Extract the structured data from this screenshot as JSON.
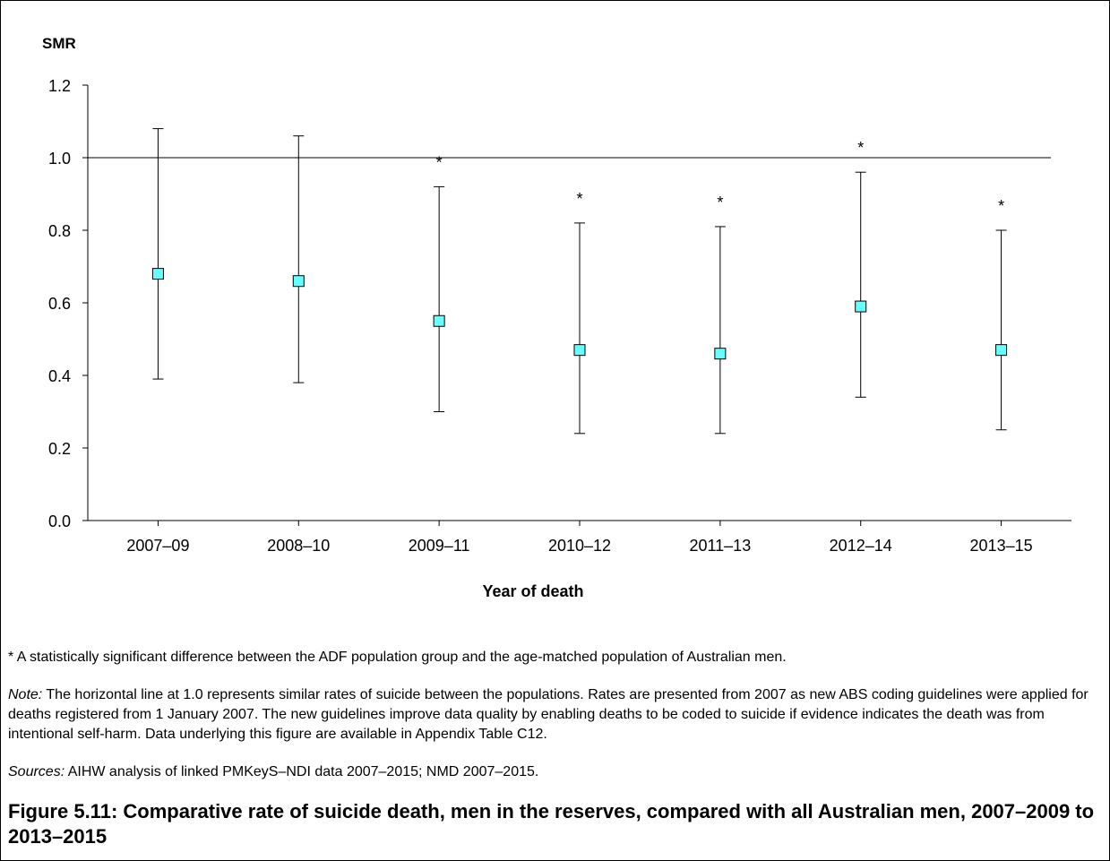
{
  "chart_data": {
    "type": "scatter",
    "ylabel": "SMR",
    "xlabel": "Year of death",
    "ylim": [
      0,
      1.2
    ],
    "yticks": [
      "0.0",
      "0.2",
      "0.4",
      "0.6",
      "0.8",
      "1.0",
      "1.2"
    ],
    "categories": [
      "2007–09",
      "2008–10",
      "2009–11",
      "2010–12",
      "2011–13",
      "2012–14",
      "2013–15"
    ],
    "values": [
      0.68,
      0.66,
      0.55,
      0.47,
      0.46,
      0.59,
      0.47
    ],
    "ci_lower": [
      0.39,
      0.38,
      0.3,
      0.24,
      0.24,
      0.34,
      0.25
    ],
    "ci_upper": [
      1.08,
      1.06,
      0.92,
      0.82,
      0.81,
      0.96,
      0.8
    ],
    "significant": [
      false,
      false,
      true,
      true,
      true,
      true,
      true
    ],
    "significance_marker": "*",
    "reference_line": 1.0,
    "grid": false,
    "marker_color": "#66ffff"
  },
  "notes": {
    "significance": "* A statistically significant difference between the ADF population group and the age-matched population of Australian men.",
    "note_label": "Note:",
    "note_text": " The horizontal line at 1.0 represents similar rates of suicide between the populations. Rates are presented from 2007 as new ABS coding guidelines were applied for deaths registered from 1 January 2007. The new guidelines improve data quality by enabling deaths to be coded to suicide if evidence indicates the death was from intentional self-harm. Data underlying this figure are available in Appendix Table C12.",
    "sources_label": "Sources:",
    "sources_text": " AIHW analysis of linked PMKeyS–NDI data 2007–2015; NMD 2007–2015."
  },
  "caption": "Figure 5.11: Comparative rate of suicide death, men in the reserves, compared with all Australian men, 2007–2009 to 2013–2015"
}
